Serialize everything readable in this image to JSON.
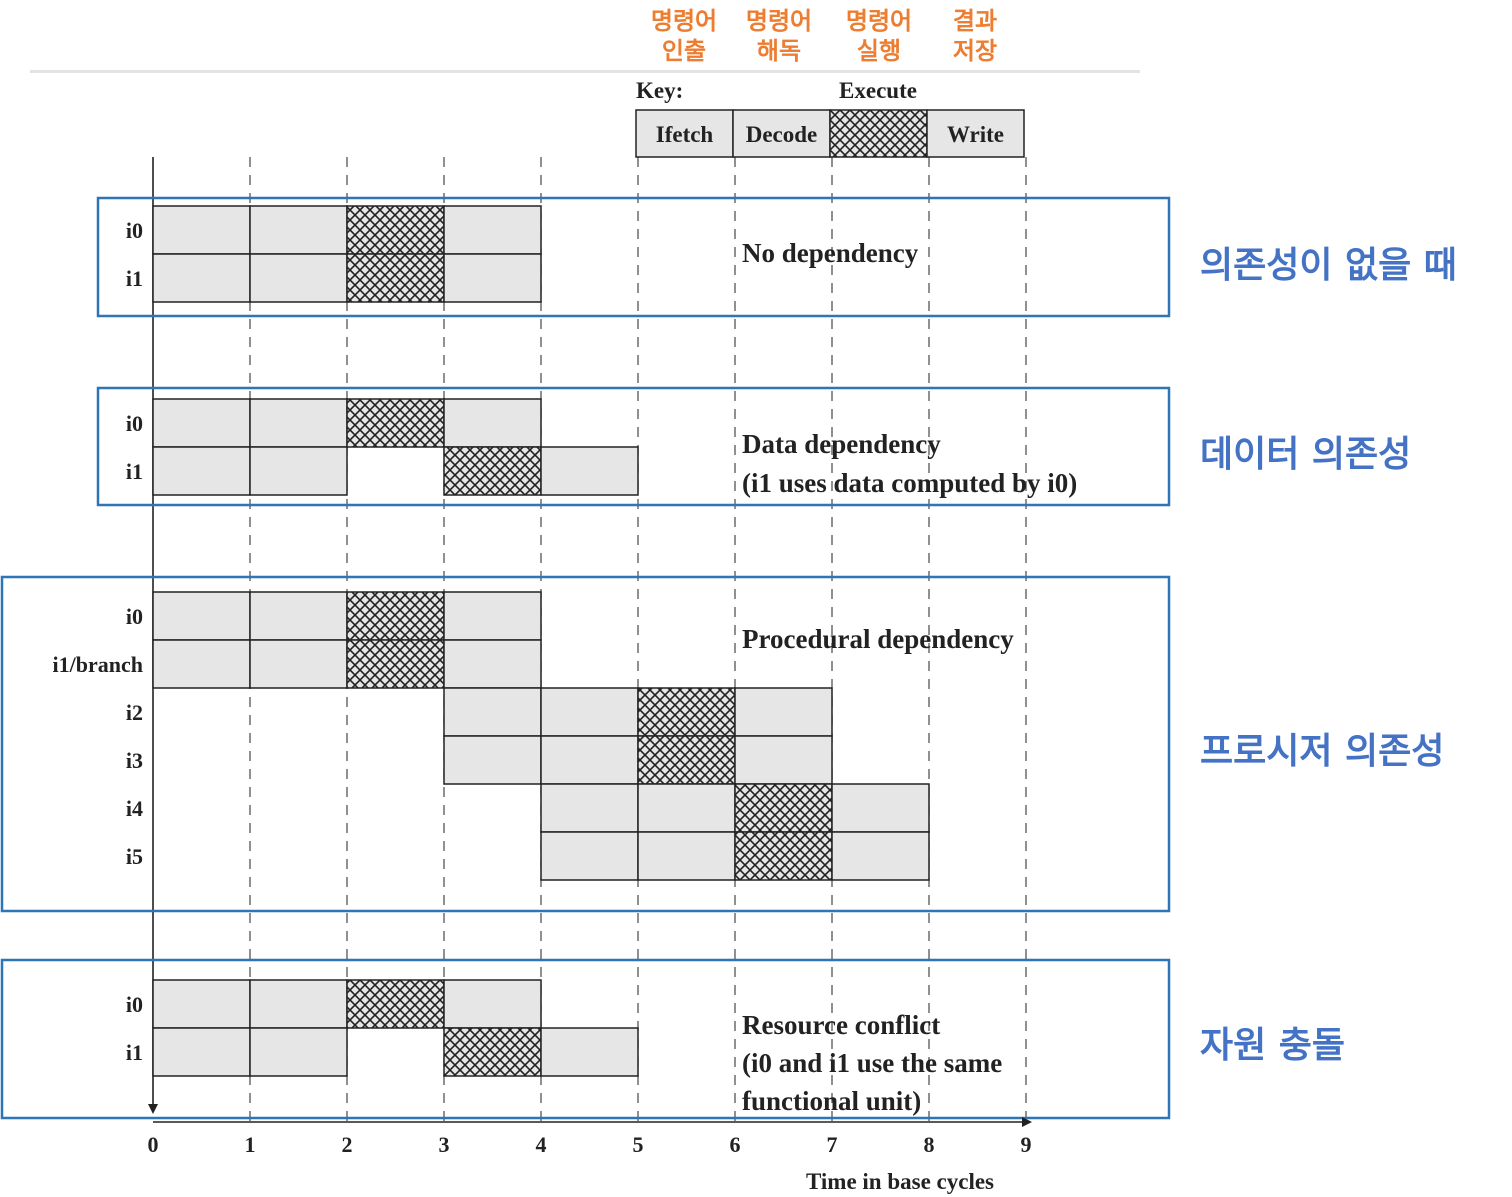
{
  "stage_labels_kr": [
    {
      "line1": "명령어",
      "line2": "인출"
    },
    {
      "line1": "명령어",
      "line2": "해독"
    },
    {
      "line1": "명령어",
      "line2": "실행"
    },
    {
      "line1": "결과",
      "line2": "저장"
    }
  ],
  "key": {
    "title": "Key:",
    "execute_label": "Execute",
    "stages": [
      "Ifetch",
      "Decode",
      "",
      "Write"
    ]
  },
  "axis": {
    "ticks": [
      "0",
      "1",
      "2",
      "3",
      "4",
      "5",
      "6",
      "7",
      "8",
      "9"
    ],
    "label": "Time in base cycles"
  },
  "scenarios": [
    {
      "id": "no-dependency",
      "label_kr": "의존성이 없을 때",
      "desc": [
        "No dependency"
      ],
      "instructions": [
        {
          "name": "i0",
          "start": 0,
          "exec": 2
        },
        {
          "name": "i1",
          "start": 0,
          "exec": 2
        }
      ]
    },
    {
      "id": "data-dependency",
      "label_kr": "데이터 의존성",
      "desc": [
        "Data dependency",
        "(i1 uses data computed by i0)"
      ],
      "instructions": [
        {
          "name": "i0",
          "start": 0,
          "exec": 2
        },
        {
          "name": "i1",
          "start": 0,
          "exec": 3
        }
      ]
    },
    {
      "id": "procedural-dependency",
      "label_kr": "프로시저 의존성",
      "desc": [
        "Procedural dependency"
      ],
      "instructions": [
        {
          "name": "i0",
          "start": 0,
          "exec": 2
        },
        {
          "name": "i1/branch",
          "start": 0,
          "exec": 2
        },
        {
          "name": "i2",
          "start": 3,
          "exec": 5
        },
        {
          "name": "i3",
          "start": 3,
          "exec": 5
        },
        {
          "name": "i4",
          "start": 4,
          "exec": 6
        },
        {
          "name": "i5",
          "start": 4,
          "exec": 6
        }
      ]
    },
    {
      "id": "resource-conflict",
      "label_kr": "자원 충돌",
      "desc": [
        "Resource conflict",
        "(i0 and i1 use the same",
        "functional unit)"
      ],
      "instructions": [
        {
          "name": "i0",
          "start": 0,
          "exec": 2
        },
        {
          "name": "i1",
          "start": 0,
          "exec": 3
        }
      ]
    }
  ]
}
